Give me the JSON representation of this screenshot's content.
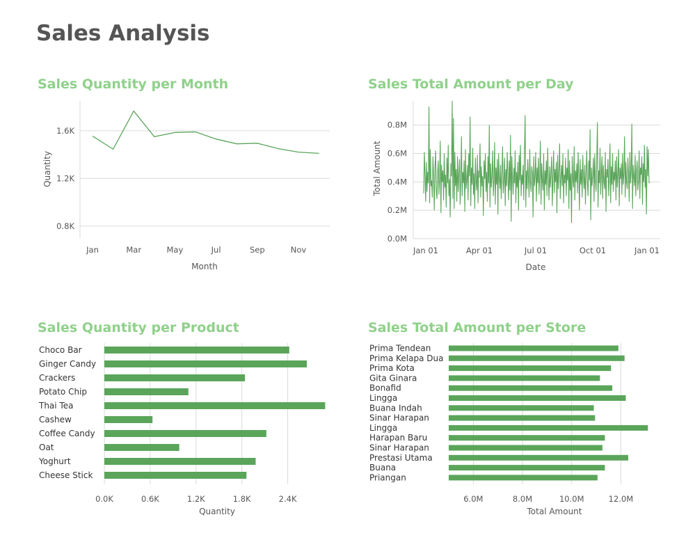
{
  "page": {
    "title": "Sales Analysis"
  },
  "colors": {
    "accent": "#8fd18a",
    "series": "#5aa55a",
    "grid": "#d9d9d9",
    "title": "#555555"
  },
  "chart_data": [
    {
      "id": "qty-month",
      "type": "line",
      "title": "Sales Quantity per Month",
      "xlabel": "Month",
      "ylabel": "Quantity",
      "x": [
        "Jan",
        "Feb",
        "Mar",
        "Apr",
        "May",
        "Jun",
        "Jul",
        "Aug",
        "Sep",
        "Oct",
        "Nov",
        "Dec"
      ],
      "xtick_labels": [
        "Jan",
        "Mar",
        "May",
        "Jul",
        "Sep",
        "Nov"
      ],
      "values": [
        1555,
        1445,
        1765,
        1550,
        1585,
        1590,
        1530,
        1490,
        1495,
        1450,
        1420,
        1410
      ],
      "ylim": [
        700,
        1850
      ],
      "yticks": [
        800,
        1200,
        1600
      ],
      "ytick_labels": [
        "0.8K",
        "1.2K",
        "1.6K"
      ],
      "grid": true
    },
    {
      "id": "amount-day",
      "type": "line",
      "title": "Sales Total Amount per Day",
      "xlabel": "Date",
      "ylabel": "Total Amount",
      "xtick_labels": [
        "Jan 01",
        "Apr 01",
        "Jul 01",
        "Oct 01",
        "Jan 01"
      ],
      "ylim": [
        0,
        0.97
      ],
      "yticks": [
        0,
        0.2,
        0.4,
        0.6,
        0.8
      ],
      "ytick_labels": [
        "0.0M",
        "0.2M",
        "0.4M",
        "0.6M",
        "0.8M"
      ],
      "grid": true,
      "values": [
        0.32,
        0.61,
        0.45,
        0.26,
        0.54,
        0.33,
        0.47,
        0.39,
        0.93,
        0.25,
        0.63,
        0.37,
        0.41,
        0.29,
        0.58,
        0.44,
        0.2,
        0.5,
        0.62,
        0.34,
        0.28,
        0.46,
        0.55,
        0.31,
        0.43,
        0.69,
        0.18,
        0.52,
        0.4,
        0.48,
        0.27,
        0.6,
        0.36,
        0.45,
        0.22,
        0.57,
        0.39,
        0.66,
        0.3,
        0.42,
        0.15,
        0.53,
        0.44,
        0.97,
        0.28,
        0.85,
        0.21,
        0.61,
        0.37,
        0.49,
        0.26,
        0.58,
        0.33,
        0.45,
        0.56,
        0.24,
        0.42,
        0.72,
        0.3,
        0.47,
        0.39,
        0.55,
        0.19,
        0.63,
        0.35,
        0.41,
        0.52,
        0.27,
        0.6,
        0.44,
        0.86,
        0.23,
        0.5,
        0.38,
        0.64,
        0.31,
        0.46,
        0.21,
        0.57,
        0.4,
        0.34,
        0.59,
        0.25,
        0.48,
        0.43,
        0.67,
        0.29,
        0.51,
        0.37,
        0.44,
        0.16,
        0.55,
        0.42,
        0.6,
        0.33,
        0.47,
        0.26,
        0.58,
        0.39,
        0.8,
        0.22,
        0.53,
        0.36,
        0.45,
        0.62,
        0.3,
        0.41,
        0.68,
        0.24,
        0.5,
        0.38,
        0.56,
        0.17,
        0.6,
        0.43,
        0.35,
        0.52,
        0.28,
        0.46,
        0.65,
        0.32,
        0.4,
        0.57,
        0.23,
        0.49,
        0.37,
        0.61,
        0.44,
        0.27,
        0.55,
        0.34,
        0.73,
        0.12,
        0.58,
        0.42,
        0.31,
        0.5,
        0.39,
        0.62,
        0.25,
        0.47,
        0.36,
        0.54,
        0.2,
        0.59,
        0.41,
        0.66,
        0.3,
        0.45,
        0.38,
        0.52,
        0.27,
        0.6,
        0.87,
        0.22,
        0.48,
        0.35,
        0.56,
        0.43,
        0.29,
        0.63,
        0.4,
        0.33,
        0.51,
        0.46,
        0.15,
        0.58,
        0.37,
        0.44,
        0.61,
        0.26,
        0.5,
        0.39,
        0.57,
        0.31,
        0.45,
        0.69,
        0.24,
        0.53,
        0.41,
        0.34,
        0.6,
        0.2,
        0.48,
        0.38,
        0.55,
        0.3,
        0.64,
        0.42,
        0.27,
        0.51,
        0.36,
        0.46,
        0.58,
        0.23,
        0.44,
        0.62,
        0.32,
        0.49,
        0.4,
        0.54,
        0.18,
        0.59,
        0.35,
        0.47,
        0.67,
        0.28,
        0.43,
        0.52,
        0.37,
        0.6,
        0.25,
        0.45,
        0.39,
        0.57,
        0.3,
        0.5,
        0.41,
        0.63,
        0.21,
        0.55,
        0.34,
        0.46,
        0.11,
        0.58,
        0.42,
        0.36,
        0.65,
        0.27,
        0.48,
        0.4,
        0.53,
        0.32,
        0.61,
        0.44,
        0.2,
        0.56,
        0.38,
        0.49,
        0.29,
        0.59,
        0.43,
        0.35,
        0.52,
        0.24,
        0.47,
        0.62,
        0.39,
        0.3,
        0.55,
        0.41,
        0.77,
        0.13,
        0.5,
        0.37,
        0.45,
        0.57,
        0.26,
        0.6,
        0.42,
        0.33,
        0.54,
        0.82,
        0.22,
        0.48,
        0.39,
        0.64,
        0.31,
        0.46,
        0.58,
        0.28,
        0.52,
        0.4,
        0.35,
        0.61,
        0.19,
        0.49,
        0.43,
        0.56,
        0.3,
        0.44,
        0.67,
        0.25,
        0.51,
        0.38,
        0.6,
        0.33,
        0.47,
        0.41,
        0.55,
        0.27,
        0.58,
        0.36,
        0.45,
        0.63,
        0.23,
        0.5,
        0.42,
        0.53,
        0.31,
        0.6,
        0.38,
        0.46,
        0.72,
        0.29,
        0.54,
        0.4,
        0.35,
        0.57,
        0.44,
        0.26,
        0.61,
        0.39,
        0.48,
        0.81,
        0.21,
        0.52,
        0.43,
        0.37,
        0.59,
        0.3,
        0.47,
        0.55,
        0.34,
        0.41,
        0.62,
        0.28,
        0.5,
        0.45,
        0.58,
        0.24,
        0.53,
        0.4,
        0.66,
        0.36,
        0.49,
        0.17,
        0.65,
        0.44,
        0.63,
        0.39
      ]
    },
    {
      "id": "qty-product",
      "type": "bar",
      "orientation": "horizontal",
      "title": "Sales Quantity per Product",
      "xlabel": "Quantity",
      "ylabel": "",
      "categories": [
        "Choco Bar",
        "Ginger Candy",
        "Crackers",
        "Potato Chip",
        "Thai Tea",
        "Cashew",
        "Coffee Candy",
        "Oat",
        "Yoghurt",
        "Cheese Stick"
      ],
      "values": [
        2420,
        2650,
        1840,
        1100,
        2890,
        630,
        2120,
        980,
        1980,
        1860
      ],
      "xlim": [
        0,
        2950
      ],
      "xticks": [
        0,
        600,
        1200,
        1800,
        2400
      ],
      "xtick_labels": [
        "0.0K",
        "0.6K",
        "1.2K",
        "1.8K",
        "2.4K"
      ],
      "grid": true
    },
    {
      "id": "amount-store",
      "type": "bar",
      "orientation": "horizontal",
      "title": "Sales Total Amount per Store",
      "xlabel": "Total Amount",
      "ylabel": "",
      "categories": [
        "Prima Tendean",
        "Prima Kelapa Dua",
        "Prima Kota",
        "Gita Ginara",
        "Bonafid",
        "Lingga",
        "Buana Indah",
        "Sinar Harapan",
        "Lingga",
        "Harapan Baru",
        "Sinar Harapan",
        "Prestasi Utama",
        "Buana",
        "Priangan"
      ],
      "values": [
        11.9,
        12.15,
        11.6,
        11.15,
        11.65,
        12.2,
        10.9,
        10.95,
        13.1,
        11.35,
        11.25,
        12.3,
        11.35,
        11.05
      ],
      "xlim": [
        5.0,
        13.6
      ],
      "xticks": [
        6,
        8,
        10,
        12
      ],
      "xtick_labels": [
        "6.0M",
        "8.0M",
        "10.0M",
        "12.0M"
      ],
      "grid": true
    }
  ]
}
